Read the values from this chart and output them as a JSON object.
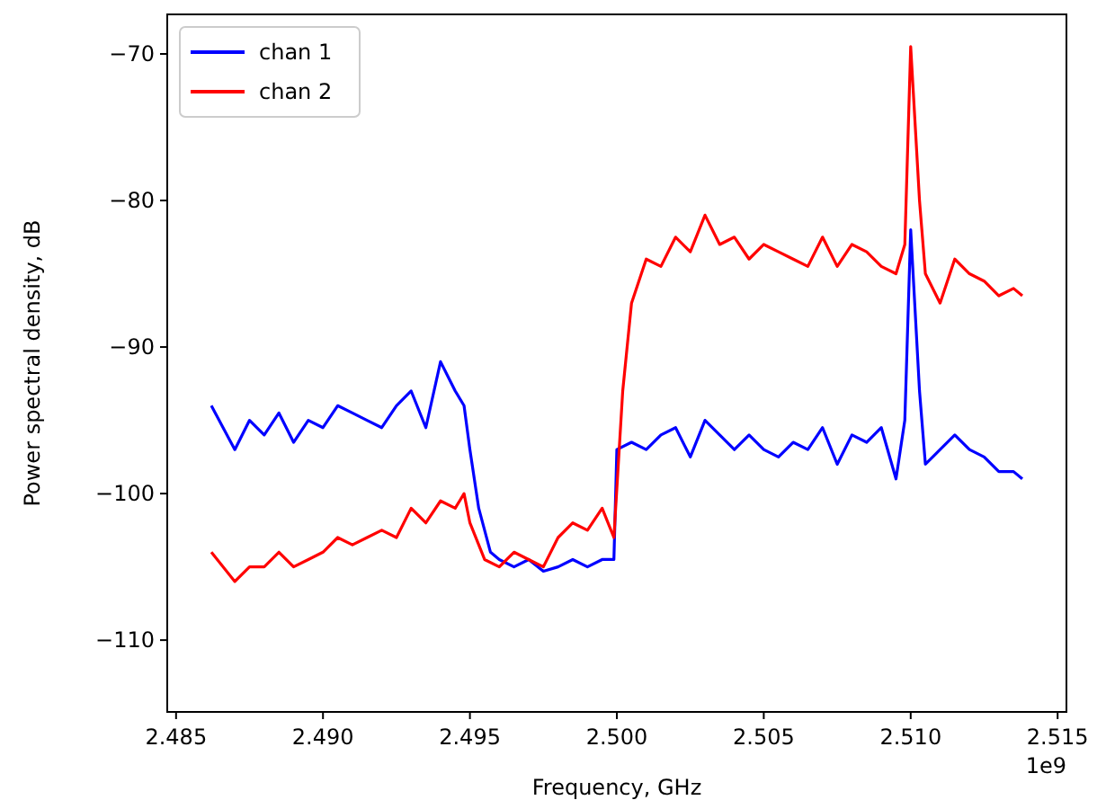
{
  "chart_data": {
    "type": "line",
    "xlabel": "Frequency, GHz",
    "ylabel": "Power spectral density, dB",
    "annotations": [
      "1e9"
    ],
    "xlim": [
      2.4847,
      2.5153
    ],
    "xticks": [
      2.485,
      {
        "value": 2.49,
        "label": "2.490"
      },
      2.495,
      {
        "value": 2.5,
        "label": "2.500"
      },
      2.505,
      {
        "value": 2.51,
        "label": "2.510"
      },
      2.515
    ],
    "ylim": [
      -114.9,
      -67.3
    ],
    "yticks": [
      -110,
      -100,
      -90,
      -80,
      -70
    ],
    "grid": false,
    "legend": "top left",
    "series": [
      {
        "name": "chan 1",
        "color": "#0000ff",
        "x": [
          2.4862,
          2.487,
          2.4875,
          2.488,
          2.4885,
          2.489,
          2.4895,
          2.49,
          2.4905,
          2.491,
          2.4915,
          2.492,
          2.4925,
          2.493,
          2.4935,
          2.494,
          2.4945,
          2.4948,
          2.495,
          2.4953,
          2.4957,
          2.496,
          2.4965,
          2.497,
          2.4975,
          2.498,
          2.4985,
          2.499,
          2.4995,
          2.4999,
          2.5,
          2.5005,
          2.501,
          2.5015,
          2.502,
          2.5025,
          2.503,
          2.5035,
          2.504,
          2.5045,
          2.505,
          2.5055,
          2.506,
          2.5065,
          2.507,
          2.5075,
          2.508,
          2.5085,
          2.509,
          2.5095,
          2.5098,
          2.51,
          2.5103,
          2.5105,
          2.511,
          2.5115,
          2.512,
          2.5125,
          2.513,
          2.5135,
          2.5138
        ],
        "values": [
          -94,
          -97,
          -95,
          -96,
          -94.5,
          -96.5,
          -95,
          -95.5,
          -94,
          -94.5,
          -95,
          -95.5,
          -94,
          -93,
          -95.5,
          -91,
          -93,
          -94,
          -97,
          -101,
          -104,
          -104.5,
          -105,
          -104.5,
          -105.3,
          -105,
          -104.5,
          -105,
          -104.5,
          -104.5,
          -97,
          -96.5,
          -97,
          -96,
          -95.5,
          -97.5,
          -95,
          -96,
          -97,
          -96,
          -97,
          -97.5,
          -96.5,
          -97,
          -95.5,
          -98,
          -96,
          -96.5,
          -95.5,
          -99,
          -95,
          -82,
          -93,
          -98,
          -97,
          -96,
          -97,
          -97.5,
          -98.5,
          -98.5,
          -99
        ]
      },
      {
        "name": "chan 2",
        "color": "#ff0000",
        "x": [
          2.4862,
          2.487,
          2.4875,
          2.488,
          2.4885,
          2.489,
          2.4895,
          2.49,
          2.4905,
          2.491,
          2.4915,
          2.492,
          2.4925,
          2.493,
          2.4935,
          2.494,
          2.4945,
          2.4948,
          2.495,
          2.4955,
          2.496,
          2.4965,
          2.497,
          2.4975,
          2.498,
          2.4985,
          2.499,
          2.4995,
          2.4999,
          2.5002,
          2.5005,
          2.501,
          2.5015,
          2.502,
          2.5025,
          2.503,
          2.5035,
          2.504,
          2.5045,
          2.505,
          2.5055,
          2.506,
          2.5065,
          2.507,
          2.5075,
          2.508,
          2.5085,
          2.509,
          2.5095,
          2.5098,
          2.51,
          2.5103,
          2.5105,
          2.511,
          2.5115,
          2.512,
          2.5125,
          2.513,
          2.5135,
          2.5138
        ],
        "values": [
          -104,
          -106,
          -105,
          -105,
          -104,
          -105,
          -104.5,
          -104,
          -103,
          -103.5,
          -103,
          -102.5,
          -103,
          -101,
          -102,
          -100.5,
          -101,
          -100,
          -102,
          -104.5,
          -105,
          -104,
          -104.5,
          -105,
          -103,
          -102,
          -102.5,
          -101,
          -103,
          -93,
          -87,
          -84,
          -84.5,
          -82.5,
          -83.5,
          -81,
          -83,
          -82.5,
          -84,
          -83,
          -83.5,
          -84,
          -84.5,
          -82.5,
          -84.5,
          -83,
          -83.5,
          -84.5,
          -85,
          -83,
          -69.5,
          -80,
          -85,
          -87,
          -84,
          -85,
          -85.5,
          -86.5,
          -86,
          -86.5
        ]
      }
    ]
  }
}
